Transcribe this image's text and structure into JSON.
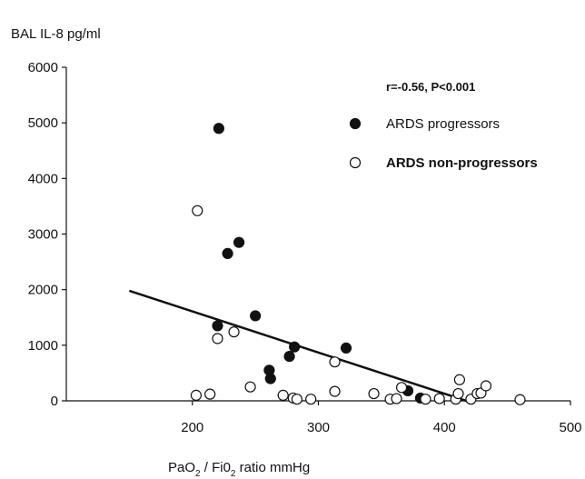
{
  "chart_data": {
    "type": "scatter",
    "ylabel": "BAL IL-8 pg/ml",
    "xlabel_parts": [
      "PaO",
      "2",
      " / Fi0",
      "2",
      " ratio mmHg"
    ],
    "xlim": [
      100,
      500
    ],
    "ylim": [
      0,
      6000
    ],
    "xticks": [
      200,
      300,
      400,
      500
    ],
    "yticks": [
      0,
      1000,
      2000,
      3000,
      4000,
      5000,
      6000
    ],
    "annotation": "r=-0.56, P<0.001",
    "legend_position": "top-right",
    "grid": false,
    "series": [
      {
        "name": "ARDS progressors",
        "marker": "filled-circle",
        "points": [
          [
            221,
            4900
          ],
          [
            228,
            2650
          ],
          [
            237,
            2850
          ],
          [
            220,
            1350
          ],
          [
            250,
            1530
          ],
          [
            261,
            550
          ],
          [
            262,
            400
          ],
          [
            277,
            800
          ],
          [
            281,
            970
          ],
          [
            322,
            950
          ],
          [
            371,
            180
          ],
          [
            381,
            50
          ]
        ]
      },
      {
        "name": "ARDS non-progressors",
        "marker": "open-circle",
        "points": [
          [
            204,
            3420
          ],
          [
            203,
            100
          ],
          [
            214,
            120
          ],
          [
            220,
            1120
          ],
          [
            233,
            1240
          ],
          [
            246,
            250
          ],
          [
            272,
            100
          ],
          [
            280,
            50
          ],
          [
            283,
            30
          ],
          [
            294,
            30
          ],
          [
            313,
            700
          ],
          [
            313,
            170
          ],
          [
            344,
            130
          ],
          [
            357,
            30
          ],
          [
            362,
            40
          ],
          [
            366,
            240
          ],
          [
            385,
            30
          ],
          [
            396,
            40
          ],
          [
            409,
            30
          ],
          [
            412,
            380
          ],
          [
            411,
            130
          ],
          [
            421,
            30
          ],
          [
            426,
            130
          ],
          [
            429,
            140
          ],
          [
            433,
            270
          ],
          [
            460,
            20
          ]
        ]
      }
    ],
    "regression_line": {
      "x": [
        150,
        420
      ],
      "y": [
        1980,
        -20
      ]
    }
  }
}
